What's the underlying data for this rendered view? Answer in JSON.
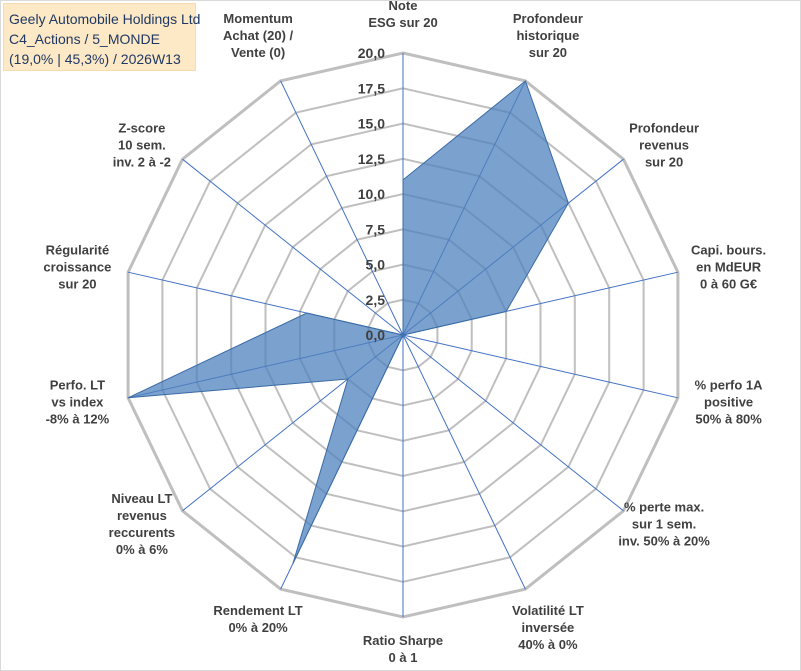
{
  "title_box": {
    "line1": "Geely Automobile Holdings Ltd",
    "line2": "C4_Actions / 5_MONDE",
    "line3": "(19,0% | 45,3%) / 2026W13"
  },
  "colors": {
    "fill": "#4f81bd",
    "fill_opacity": "0.75",
    "grid": "#bfbfbf",
    "spoke": "#4472c4",
    "title_bg": "#fde9c5"
  },
  "chart_data": {
    "type": "radar",
    "title": "Geely Automobile Holdings Ltd",
    "r_range": [
      0,
      20
    ],
    "r_ticks": [
      "0,0",
      "2,5",
      "5,0",
      "7,5",
      "10,0",
      "12,5",
      "15,0",
      "17,5",
      "20,0"
    ],
    "categories": [
      [
        "Note",
        "ESG sur 20"
      ],
      [
        "Profondeur",
        "historique",
        "sur 20"
      ],
      [
        "Profondeur",
        "revenus",
        "sur 20"
      ],
      [
        "Capi. bours.",
        "en MdEUR",
        "0 à 60 G€"
      ],
      [
        "% perfo 1A",
        "positive",
        "50% à 80%"
      ],
      [
        "% perte max.",
        "sur 1 sem.",
        "inv. 50% à 20%"
      ],
      [
        "Volatilité LT",
        "inversée",
        "40% à 0%"
      ],
      [
        "Ratio Sharpe",
        "0 à 1"
      ],
      [
        "Rendement LT",
        "0% à 20%"
      ],
      [
        "Niveau LT",
        "revenus",
        "reccurents",
        "0% à 6%"
      ],
      [
        "Perfo. LT",
        "vs index",
        "-8% à 12%"
      ],
      [
        "Régularité",
        "croissance",
        "sur 20"
      ],
      [
        "Z-score",
        "10 sem.",
        "inv. 2 à -2"
      ],
      [
        "Momentum",
        "Achat (20) /",
        "Vente (0)"
      ]
    ],
    "series": [
      {
        "name": "Geely Automobile Holdings Ltd",
        "values": [
          11,
          20,
          15,
          7.5,
          0,
          0,
          0,
          0,
          18,
          5,
          20,
          7,
          0,
          0
        ]
      }
    ]
  }
}
